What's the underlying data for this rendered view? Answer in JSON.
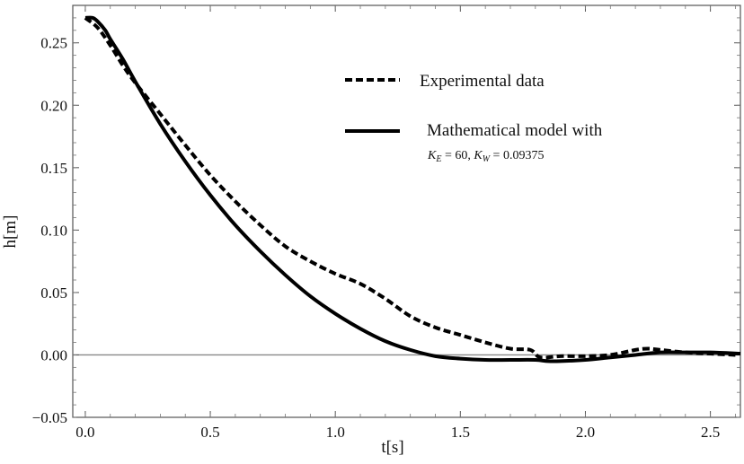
{
  "chart_data": {
    "type": "line",
    "title": "",
    "xlabel": "t[s]",
    "ylabel": "h[m]",
    "xlim": [
      -0.05,
      2.62
    ],
    "ylim": [
      -0.05,
      0.28
    ],
    "x_ticks": [
      "0.0",
      "0.5",
      "1.0",
      "1.5",
      "2.0",
      "2.5"
    ],
    "y_ticks": [
      "−0.05",
      "0.00",
      "0.05",
      "0.10",
      "0.15",
      "0.20",
      "0.25"
    ],
    "x_tick_values": [
      0,
      0.5,
      1.0,
      1.5,
      2.0,
      2.5
    ],
    "y_tick_values": [
      -0.05,
      0,
      0.05,
      0.1,
      0.15,
      0.2,
      0.25
    ],
    "grid": false,
    "zero_line": true,
    "legend_position": "top-right",
    "series": [
      {
        "name": "Experimental data",
        "style": "dashed",
        "color": "#000000",
        "x": [
          0.0,
          0.05,
          0.1,
          0.15,
          0.2,
          0.3,
          0.4,
          0.5,
          0.6,
          0.7,
          0.8,
          0.9,
          1.0,
          1.1,
          1.2,
          1.3,
          1.4,
          1.5,
          1.6,
          1.7,
          1.78,
          1.82,
          1.9,
          2.0,
          2.1,
          2.2,
          2.25,
          2.3,
          2.4,
          2.5,
          2.6
        ],
        "y": [
          0.27,
          0.262,
          0.248,
          0.232,
          0.218,
          0.193,
          0.168,
          0.144,
          0.123,
          0.104,
          0.087,
          0.075,
          0.065,
          0.057,
          0.045,
          0.031,
          0.022,
          0.016,
          0.01,
          0.005,
          0.004,
          -0.002,
          -0.001,
          -0.001,
          0.0,
          0.004,
          0.005,
          0.004,
          0.002,
          0.001,
          0.0
        ]
      },
      {
        "name": "Mathematical model with",
        "name_detail": "K_E = 60, K_W = 0.09375",
        "style": "solid",
        "color": "#000000",
        "x": [
          0.0,
          0.03,
          0.05,
          0.08,
          0.1,
          0.15,
          0.2,
          0.3,
          0.4,
          0.5,
          0.6,
          0.7,
          0.8,
          0.9,
          1.0,
          1.1,
          1.2,
          1.3,
          1.4,
          1.5,
          1.6,
          1.7,
          1.8,
          1.85,
          1.9,
          2.0,
          2.1,
          2.2,
          2.3,
          2.4,
          2.5,
          2.62
        ],
        "y": [
          0.27,
          0.27,
          0.267,
          0.26,
          0.253,
          0.237,
          0.219,
          0.185,
          0.155,
          0.128,
          0.104,
          0.083,
          0.064,
          0.047,
          0.033,
          0.021,
          0.011,
          0.004,
          -0.001,
          -0.003,
          -0.004,
          -0.004,
          -0.004,
          -0.005,
          -0.005,
          -0.004,
          -0.002,
          0.0,
          0.002,
          0.002,
          0.002,
          0.001
        ]
      }
    ],
    "legend": {
      "items": [
        {
          "label": "Experimental data",
          "style": "dashed"
        },
        {
          "label": "Mathematical model with",
          "sub_a": "K",
          "sub_a_sub": "E",
          "sub_a_val": " = 60, ",
          "sub_b": "K",
          "sub_b_sub": "W",
          "sub_b_val": " = 0.09375",
          "style": "solid"
        }
      ]
    }
  }
}
